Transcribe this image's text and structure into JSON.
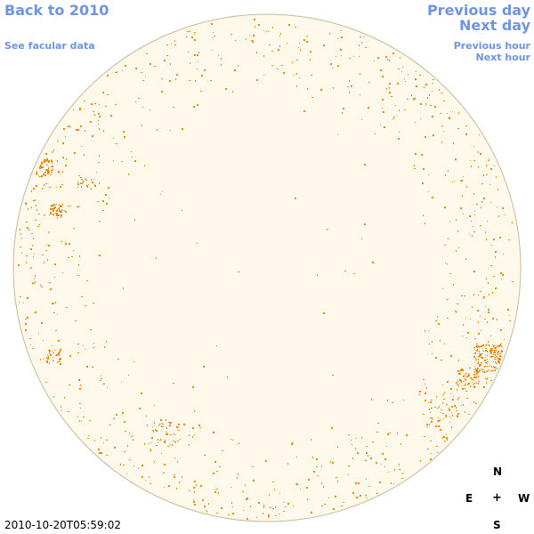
{
  "nav": {
    "back_label": "Back to 2010",
    "facular_label": "See facular data",
    "prev_day_label": "Previous day",
    "next_day_label": "Next day",
    "prev_hour_label": "Previous hour",
    "next_hour_label": "Next hour"
  },
  "compass": {
    "north": "N",
    "east": "E",
    "center": "+",
    "west": "W",
    "south": "S"
  },
  "timestamp": "2010-10-20T05:59:02",
  "colors": {
    "link": "#6f95e0",
    "disk_fill": "#fff9ec",
    "disk_outline": "#c8b99a",
    "facula": "#e8890c"
  }
}
